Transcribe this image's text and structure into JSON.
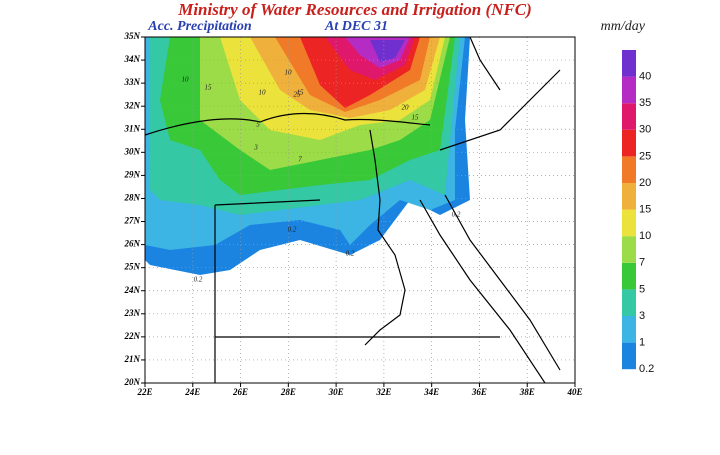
{
  "header": {
    "title": "Ministry of Water Resources and Irrigation (NFC)",
    "subtitle": "Acc. Precipitation",
    "date": "At DEC 31",
    "unit": "mm/day"
  },
  "map": {
    "lonlim": [
      22,
      40
    ],
    "latlim": [
      20,
      35
    ],
    "lon_ticks": [
      {
        "value": 22,
        "label": "22E"
      },
      {
        "value": 24,
        "label": "24E"
      },
      {
        "value": 26,
        "label": "26E"
      },
      {
        "value": 28,
        "label": "28E"
      },
      {
        "value": 30,
        "label": "30E"
      },
      {
        "value": 32,
        "label": "32E"
      },
      {
        "value": 34,
        "label": "34E"
      },
      {
        "value": 36,
        "label": "36E"
      },
      {
        "value": 38,
        "label": "38E"
      },
      {
        "value": 40,
        "label": "40E"
      }
    ],
    "lat_ticks": [
      {
        "value": 20,
        "label": "20N"
      },
      {
        "value": 21,
        "label": "21N"
      },
      {
        "value": 22,
        "label": "22N"
      },
      {
        "value": 23,
        "label": "23N"
      },
      {
        "value": 24,
        "label": "24N"
      },
      {
        "value": 25,
        "label": "25N"
      },
      {
        "value": 26,
        "label": "26N"
      },
      {
        "value": 27,
        "label": "27N"
      },
      {
        "value": 28,
        "label": "28N"
      },
      {
        "value": 29,
        "label": "29N"
      },
      {
        "value": 30,
        "label": "30N"
      },
      {
        "value": 31,
        "label": "31N"
      },
      {
        "value": 32,
        "label": "32N"
      },
      {
        "value": 33,
        "label": "33N"
      },
      {
        "value": 34,
        "label": "34N"
      },
      {
        "value": 35,
        "label": "35N"
      }
    ],
    "grid": true,
    "contour_labels": [
      "10",
      "15",
      "10",
      "15",
      "25",
      "20",
      "15",
      "3",
      "5",
      "7",
      "10",
      "0.2",
      "0.2",
      "0.2",
      "0.2"
    ]
  },
  "colorbar": {
    "levels": [
      0.2,
      1,
      3,
      5,
      7,
      10,
      15,
      20,
      25,
      30,
      35,
      40
    ],
    "colors": [
      "#1a84e0",
      "#3cb4e4",
      "#34c8a4",
      "#38c838",
      "#9cdc48",
      "#ece23c",
      "#f0b03c",
      "#f07a28",
      "#ec2424",
      "#e0186c",
      "#b42cc4",
      "#7030d0"
    ]
  }
}
